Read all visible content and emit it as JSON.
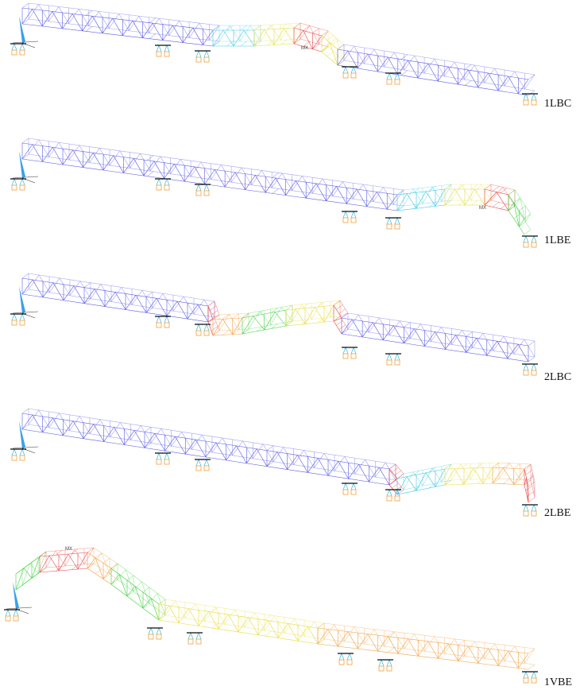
{
  "panels": [
    {
      "label": "1LBC",
      "marker": "MX"
    },
    {
      "label": "1LBE",
      "marker": "MX"
    },
    {
      "label": "2LBC"
    },
    {
      "label": "2LBE"
    },
    {
      "label": "1VBE",
      "marker": "MX"
    }
  ]
}
